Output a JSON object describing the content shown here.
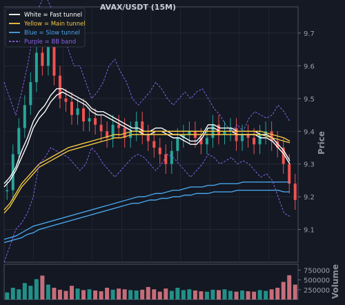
{
  "chart_data": [
    {
      "type": "line",
      "title": "AVAX/USDT (15M)",
      "ylabel": "Price",
      "ylim": [
        9.0,
        9.78
      ],
      "yticks": [
        "9.1",
        "9.2",
        "9.3",
        "9.4",
        "9.5",
        "9.6",
        "9.7"
      ],
      "yticks_values": [
        9.1,
        9.2,
        9.3,
        9.4,
        9.5,
        9.6,
        9.7
      ],
      "grid": true,
      "legend_position": "top-left",
      "legend": [
        {
          "label": "White = Fast tunnel",
          "color": "#ffffff",
          "dashed": false
        },
        {
          "label": "Yellow = Main tunnel",
          "color": "#f5c842",
          "dashed": false
        },
        {
          "label": "Blue = Slow tunnel",
          "color": "#4aa3e8",
          "dashed": false
        },
        {
          "label": "Purple = BB band",
          "color": "#8a63e8",
          "dashed": true
        }
      ],
      "series": [
        {
          "color": "#ffffff",
          "values": [
            9.24,
            9.26,
            9.29,
            9.34,
            9.38,
            9.43,
            9.46,
            9.48,
            9.51,
            9.53,
            9.53,
            9.52,
            9.51,
            9.5,
            9.49,
            9.47,
            9.46,
            9.46,
            9.45,
            9.44,
            9.43,
            9.42,
            9.41,
            9.41,
            9.4,
            9.4,
            9.41,
            9.41,
            9.4,
            9.39,
            9.39,
            9.38,
            9.37,
            9.37,
            9.39,
            9.42,
            9.42,
            9.41,
            9.41,
            9.41,
            9.4,
            9.4,
            9.4,
            9.4,
            9.39,
            9.39,
            9.38,
            9.36,
            9.34,
            9.31
          ]
        },
        {
          "color": "#ffffff",
          "values": [
            9.23,
            9.25,
            9.28,
            9.32,
            9.36,
            9.41,
            9.44,
            9.46,
            9.49,
            9.51,
            9.52,
            9.51,
            9.5,
            9.49,
            9.48,
            9.46,
            9.45,
            9.45,
            9.44,
            9.43,
            9.42,
            9.41,
            9.4,
            9.4,
            9.39,
            9.39,
            9.4,
            9.4,
            9.39,
            9.38,
            9.38,
            9.37,
            9.36,
            9.36,
            9.38,
            9.41,
            9.41,
            9.4,
            9.4,
            9.4,
            9.39,
            9.39,
            9.39,
            9.39,
            9.38,
            9.38,
            9.37,
            9.35,
            9.33,
            9.3
          ]
        },
        {
          "color": "#f5c842",
          "values": [
            9.16,
            9.18,
            9.21,
            9.24,
            9.26,
            9.28,
            9.3,
            9.31,
            9.32,
            9.33,
            9.34,
            9.35,
            9.355,
            9.36,
            9.365,
            9.37,
            9.375,
            9.38,
            9.385,
            9.39,
            9.39,
            9.395,
            9.4,
            9.4,
            9.4,
            9.4,
            9.4,
            9.4,
            9.4,
            9.4,
            9.4,
            9.4,
            9.4,
            9.4,
            9.4,
            9.4,
            9.4,
            9.4,
            9.4,
            9.4,
            9.4,
            9.4,
            9.4,
            9.4,
            9.4,
            9.395,
            9.39,
            9.385,
            9.38,
            9.37
          ]
        },
        {
          "color": "#f5c842",
          "values": [
            9.15,
            9.17,
            9.2,
            9.23,
            9.25,
            9.27,
            9.29,
            9.3,
            9.31,
            9.32,
            9.33,
            9.34,
            9.345,
            9.35,
            9.355,
            9.36,
            9.365,
            9.37,
            9.375,
            9.38,
            9.38,
            9.385,
            9.39,
            9.39,
            9.39,
            9.39,
            9.39,
            9.39,
            9.39,
            9.39,
            9.39,
            9.39,
            9.39,
            9.39,
            9.39,
            9.39,
            9.39,
            9.39,
            9.39,
            9.39,
            9.39,
            9.39,
            9.39,
            9.39,
            9.39,
            9.385,
            9.38,
            9.375,
            9.37,
            9.365
          ]
        },
        {
          "color": "#4aa3e8",
          "values": [
            9.07,
            9.075,
            9.08,
            9.09,
            9.1,
            9.11,
            9.115,
            9.12,
            9.125,
            9.13,
            9.135,
            9.14,
            9.145,
            9.15,
            9.155,
            9.16,
            9.165,
            9.17,
            9.175,
            9.18,
            9.185,
            9.19,
            9.195,
            9.2,
            9.2,
            9.205,
            9.21,
            9.21,
            9.215,
            9.22,
            9.22,
            9.225,
            9.23,
            9.23,
            9.23,
            9.235,
            9.235,
            9.24,
            9.24,
            9.24,
            9.24,
            9.245,
            9.245,
            9.245,
            9.245,
            9.245,
            9.245,
            9.245,
            9.245,
            9.245
          ]
        },
        {
          "color": "#4aa3e8",
          "values": [
            9.06,
            9.065,
            9.07,
            9.075,
            9.085,
            9.09,
            9.1,
            9.105,
            9.11,
            9.115,
            9.12,
            9.125,
            9.13,
            9.135,
            9.14,
            9.145,
            9.15,
            9.155,
            9.16,
            9.165,
            9.17,
            9.175,
            9.18,
            9.18,
            9.185,
            9.19,
            9.19,
            9.195,
            9.195,
            9.2,
            9.2,
            9.205,
            9.205,
            9.21,
            9.21,
            9.21,
            9.215,
            9.215,
            9.215,
            9.215,
            9.22,
            9.22,
            9.22,
            9.22,
            9.22,
            9.22,
            9.22,
            9.22,
            9.215,
            9.215
          ]
        },
        {
          "color": "#8a63e8",
          "dashed": true,
          "values": [
            9.55,
            9.5,
            9.45,
            9.52,
            9.6,
            9.7,
            9.78,
            9.82,
            9.78,
            9.72,
            9.7,
            9.65,
            9.6,
            9.6,
            9.55,
            9.5,
            9.52,
            9.55,
            9.6,
            9.62,
            9.58,
            9.55,
            9.5,
            9.48,
            9.5,
            9.52,
            9.55,
            9.53,
            9.5,
            9.48,
            9.5,
            9.52,
            9.5,
            9.52,
            9.53,
            9.5,
            9.47,
            9.45,
            9.42,
            9.4,
            9.42,
            9.4,
            9.44,
            9.46,
            9.45,
            9.44,
            9.45,
            9.48,
            9.46,
            9.43
          ]
        },
        {
          "color": "#8a63e8",
          "dashed": true,
          "values": [
            9.0,
            9.05,
            9.1,
            9.12,
            9.15,
            9.2,
            9.3,
            9.32,
            9.35,
            9.34,
            9.33,
            9.32,
            9.3,
            9.28,
            9.3,
            9.35,
            9.33,
            9.3,
            9.28,
            9.26,
            9.28,
            9.3,
            9.32,
            9.33,
            9.32,
            9.3,
            9.28,
            9.3,
            9.33,
            9.32,
            9.3,
            9.28,
            9.26,
            9.28,
            9.3,
            9.33,
            9.32,
            9.3,
            9.31,
            9.32,
            9.3,
            9.31,
            9.3,
            9.28,
            9.26,
            9.27,
            9.25,
            9.2,
            9.15,
            9.14
          ]
        }
      ],
      "candles": [
        9.22,
        9.33,
        9.41,
        9.48,
        9.55,
        9.64,
        9.6,
        9.66,
        9.57,
        9.5,
        9.49,
        9.45,
        9.47,
        9.43,
        9.44,
        9.42,
        9.4,
        9.38,
        9.42,
        9.41,
        9.38,
        9.4,
        9.43,
        9.39,
        9.37,
        9.35,
        9.33,
        9.3,
        9.34,
        9.38,
        9.39,
        9.4,
        9.38,
        9.36,
        9.38,
        9.42,
        9.39,
        9.4,
        9.41,
        9.37,
        9.39,
        9.38,
        9.36,
        9.39,
        9.4,
        9.37,
        9.35,
        9.3,
        9.24,
        9.19
      ]
    },
    {
      "type": "bar",
      "ylabel": "Volume",
      "ylim": [
        0,
        900000
      ],
      "yticks": [
        "250000",
        "500000",
        "750000"
      ],
      "yticks_values": [
        250000,
        500000,
        750000
      ],
      "values": [
        180000,
        300000,
        260000,
        420000,
        350000,
        520000,
        610000,
        380000,
        300000,
        250000,
        220000,
        350000,
        280000,
        240000,
        260000,
        230000,
        210000,
        300000,
        250000,
        280000,
        260000,
        240000,
        230000,
        250000,
        320000,
        260000,
        200000,
        280000,
        220000,
        300000,
        240000,
        260000,
        230000,
        210000,
        200000,
        250000,
        240000,
        260000,
        220000,
        200000,
        230000,
        210000,
        200000,
        240000,
        220000,
        260000,
        300000,
        450000,
        620000,
        380000
      ]
    }
  ]
}
